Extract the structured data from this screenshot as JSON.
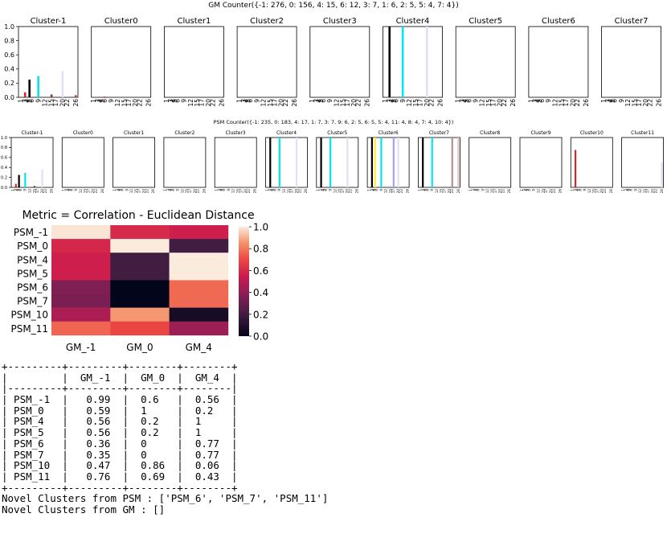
{
  "gm_panel": {
    "title": "GM Counter({-1: 276, 0: 156, 4: 15, 6: 12, 3: 7, 1: 6, 2: 5, 5: 4, 7: 4})",
    "subplot_titles": [
      "Cluster-1",
      "Cluster0",
      "Cluster1",
      "Cluster2",
      "Cluster3",
      "Cluster4",
      "Cluster5",
      "Cluster6",
      "Cluster7"
    ],
    "yticks": [
      "0.0",
      "0.2",
      "0.4",
      "0.6",
      "0.8",
      "1.0"
    ],
    "xticks": [
      "1",
      "3",
      "4",
      "5",
      "6",
      "9",
      "12",
      "15",
      "17",
      "20",
      "22",
      "26"
    ]
  },
  "psm_panel": {
    "title": "PSM Counter({-1: 235, 0: 183, 4: 17, 1: 7, 3: 7, 9: 6, 2: 5, 6: 5, 5: 4, 11: 4, 8: 4, 7: 4, 10: 4})",
    "subplot_titles": [
      "Cluster-1",
      "Cluster0",
      "Cluster1",
      "Cluster2",
      "Cluster3",
      "Cluster4",
      "Cluster5",
      "Cluster6",
      "Cluster7",
      "Cluster8",
      "Cluster9",
      "Cluster10",
      "Cluster11"
    ],
    "yticks": [
      "0.0",
      "0.2",
      "0.4",
      "0.6",
      "0.8",
      "1.0"
    ],
    "xticks": [
      "1",
      "3",
      "4",
      "5",
      "6",
      "9",
      "12",
      "15",
      "17",
      "20",
      "22",
      "26"
    ]
  },
  "chart_data": [
    {
      "type": "bar",
      "panel": "gm",
      "ylim": [
        0,
        1
      ],
      "x_positions": [
        1,
        3,
        4,
        5,
        6,
        9,
        12,
        15,
        17,
        20,
        22,
        26
      ],
      "colors": [
        "#e8e8f8",
        "#d62728",
        "#000000",
        "#ffeb3b",
        "#00e5ee",
        "#7f3b3b",
        "#b0a0e0",
        "#f0c8c8",
        "#a0a0ff",
        "#d8d8f0",
        "#c0c0c0",
        "#e0e0f8"
      ],
      "subplots": [
        {
          "title": "Cluster-1",
          "bars": [
            {
              "x": 3,
              "value": 0.07,
              "color": "#d62728"
            },
            {
              "x": 5,
              "value": 0.25,
              "color": "#000000"
            },
            {
              "x": 9,
              "value": 0.3,
              "color": "#00e5ee"
            },
            {
              "x": 15,
              "value": 0.04,
              "color": "#7f3b3b"
            },
            {
              "x": 20,
              "value": 0.37,
              "color": "#e0e0f8"
            },
            {
              "x": 26,
              "value": 0.03,
              "color": "#b04040"
            }
          ]
        },
        {
          "title": "Cluster0",
          "bars": [
            {
              "x": 6,
              "value": 0.01,
              "color": "#d62728"
            }
          ]
        },
        {
          "title": "Cluster1",
          "bars": []
        },
        {
          "title": "Cluster2",
          "bars": []
        },
        {
          "title": "Cluster3",
          "bars": []
        },
        {
          "title": "Cluster4",
          "bars": [
            {
              "x": 3,
              "value": 1.0,
              "color": "#000000"
            },
            {
              "x": 9,
              "value": 1.0,
              "color": "#00e5ee"
            },
            {
              "x": 20,
              "value": 1.0,
              "color": "#e0e0f8"
            }
          ]
        },
        {
          "title": "Cluster5",
          "bars": []
        },
        {
          "title": "Cluster6",
          "bars": []
        },
        {
          "title": "Cluster7",
          "bars": []
        }
      ]
    },
    {
      "type": "bar",
      "panel": "psm",
      "ylim": [
        0,
        1
      ],
      "subplots": [
        {
          "title": "Cluster-1",
          "bars": [
            {
              "x": 3,
              "value": 0.07,
              "color": "#d62728"
            },
            {
              "x": 5,
              "value": 0.25,
              "color": "#000000"
            },
            {
              "x": 9,
              "value": 0.29,
              "color": "#00e5ee"
            },
            {
              "x": 15,
              "value": 0.03,
              "color": "#7f3b3b"
            },
            {
              "x": 20,
              "value": 0.36,
              "color": "#e0e0f8"
            }
          ]
        },
        {
          "title": "Cluster0",
          "bars": [
            {
              "x": 6,
              "value": 0.01,
              "color": "#d62728"
            }
          ]
        },
        {
          "title": "Cluster1",
          "bars": []
        },
        {
          "title": "Cluster2",
          "bars": []
        },
        {
          "title": "Cluster3",
          "bars": []
        },
        {
          "title": "Cluster4",
          "bars": [
            {
              "x": 3,
              "value": 1.0,
              "color": "#000000"
            },
            {
              "x": 9,
              "value": 1.0,
              "color": "#00e5ee"
            },
            {
              "x": 20,
              "value": 1.0,
              "color": "#e0e0f8"
            }
          ]
        },
        {
          "title": "Cluster5",
          "bars": [
            {
              "x": 3,
              "value": 1.0,
              "color": "#000000"
            },
            {
              "x": 9,
              "value": 1.0,
              "color": "#00e5ee"
            },
            {
              "x": 20,
              "value": 1.0,
              "color": "#e0e0f8"
            }
          ]
        },
        {
          "title": "Cluster6",
          "bars": [
            {
              "x": 3,
              "value": 1.0,
              "color": "#000000"
            },
            {
              "x": 5,
              "value": 1.0,
              "color": "#ffeb3b"
            },
            {
              "x": 9,
              "value": 1.0,
              "color": "#00e5ee"
            },
            {
              "x": 17,
              "value": 1.0,
              "color": "#a0a0ff"
            },
            {
              "x": 20,
              "value": 1.0,
              "color": "#e0e0f8"
            }
          ]
        },
        {
          "title": "Cluster7",
          "bars": [
            {
              "x": 3,
              "value": 1.0,
              "color": "#000000"
            },
            {
              "x": 9,
              "value": 1.0,
              "color": "#00e5ee"
            },
            {
              "x": 22,
              "value": 1.0,
              "color": "#b09090"
            },
            {
              "x": 26,
              "value": 1.0,
              "color": "#e0c0c0"
            }
          ]
        },
        {
          "title": "Cluster8",
          "bars": []
        },
        {
          "title": "Cluster9",
          "bars": []
        },
        {
          "title": "Cluster10",
          "bars": [
            {
              "x": 3,
              "value": 0.75,
              "color": "#d62728"
            }
          ]
        },
        {
          "title": "Cluster11",
          "bars": [
            {
              "x": 26,
              "value": 0.5,
              "color": "#e0e0f8"
            }
          ]
        }
      ]
    },
    {
      "type": "heatmap",
      "title": "Metric = Correlation - Euclidean Distance",
      "rows": [
        "PSM_-1",
        "PSM_0",
        "PSM_4",
        "PSM_5",
        "PSM_6",
        "PSM_7",
        "PSM_10",
        "PSM_11"
      ],
      "columns": [
        "GM_-1",
        "GM_0",
        "GM_4"
      ],
      "values": [
        [
          0.99,
          0.6,
          0.56
        ],
        [
          0.59,
          1,
          0.2
        ],
        [
          0.56,
          0.2,
          1
        ],
        [
          0.56,
          0.2,
          1
        ],
        [
          0.36,
          0,
          0.77
        ],
        [
          0.35,
          0,
          0.77
        ],
        [
          0.47,
          0.86,
          0.06
        ],
        [
          0.76,
          0.69,
          0.43
        ]
      ],
      "colorbar_ticks": [
        "1.0",
        "0.8",
        "0.6",
        "0.4",
        "0.2",
        "0.0"
      ],
      "colormap": "rocket"
    }
  ],
  "text_output": {
    "lines": [
      "+---------+---------+--------+--------+",
      "|         |  GM_-1  |  GM_0  |  GM_4  |",
      "|---------+---------+--------+--------|",
      "| PSM_-1  |   0.99  |  0.6   |  0.56  |",
      "| PSM_0   |   0.59  |  1     |  0.2   |",
      "| PSM_4   |   0.56  |  0.2   |  1     |",
      "| PSM_5   |   0.56  |  0.2   |  1     |",
      "| PSM_6   |   0.36  |  0     |  0.77  |",
      "| PSM_7   |   0.35  |  0     |  0.77  |",
      "| PSM_10  |   0.47  |  0.86  |  0.06  |",
      "| PSM_11  |   0.76  |  0.69  |  0.43  |",
      "+---------+---------+--------+--------+",
      "Novel Clusters from PSM : ['PSM_6', 'PSM_7', 'PSM_11']",
      "Novel Clusters from GM : []"
    ]
  }
}
